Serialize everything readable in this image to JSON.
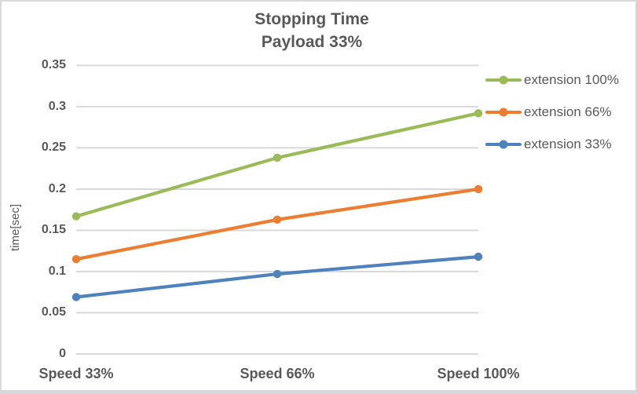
{
  "chart_data": {
    "type": "line",
    "title": "Stopping Time",
    "subtitle": "Payload 33%",
    "xlabel": "",
    "ylabel": "time[sec]",
    "categories": [
      "Speed 33%",
      "Speed 66%",
      "Speed 100%"
    ],
    "series": [
      {
        "name": "extension 100%",
        "color": "#9bbb59",
        "values": [
          0.167,
          0.238,
          0.292
        ]
      },
      {
        "name": "extension 66%",
        "color": "#ed7d31",
        "values": [
          0.115,
          0.163,
          0.2
        ]
      },
      {
        "name": "extension 33%",
        "color": "#4f81bd",
        "values": [
          0.069,
          0.097,
          0.118
        ]
      }
    ],
    "ylim": [
      0,
      0.35
    ],
    "ytick_step": 0.05,
    "ytick_labels": [
      "0",
      "0.05",
      "0.1",
      "0.15",
      "0.2",
      "0.25",
      "0.3",
      "0.35"
    ],
    "grid": true,
    "legend_position": "right"
  },
  "colors": {
    "text": "#595959",
    "grid": "#d9d9d9",
    "border": "#d9d9d9",
    "background": "#ffffff"
  }
}
